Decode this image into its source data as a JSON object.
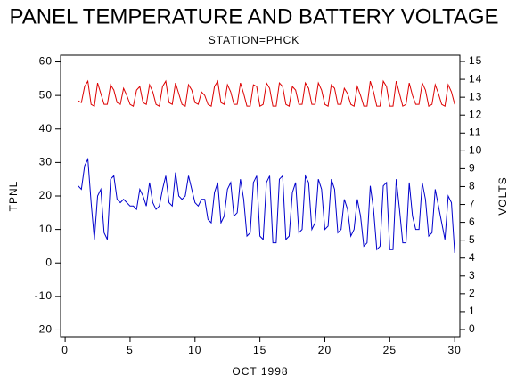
{
  "chart_data": {
    "type": "line",
    "title": "PANEL TEMPERATURE AND BATTERY VOLTAGE",
    "subtitle": "STATION=PHCK",
    "x_label": "OCT 1998",
    "y_label": "TPNL",
    "y2_label": "VOLTS",
    "x": [
      1,
      1.25,
      1.5,
      1.75,
      2,
      2.25,
      2.5,
      2.75,
      3,
      3.25,
      3.5,
      3.75,
      4,
      4.25,
      4.5,
      4.75,
      5,
      5.25,
      5.5,
      5.75,
      6,
      6.25,
      6.5,
      6.75,
      7,
      7.25,
      7.5,
      7.75,
      8,
      8.25,
      8.5,
      8.75,
      9,
      9.25,
      9.5,
      9.75,
      10,
      10.25,
      10.5,
      10.75,
      11,
      11.25,
      11.5,
      11.75,
      12,
      12.25,
      12.5,
      12.75,
      13,
      13.25,
      13.5,
      13.75,
      14,
      14.25,
      14.5,
      14.75,
      15,
      15.25,
      15.5,
      15.75,
      16,
      16.25,
      16.5,
      16.75,
      17,
      17.25,
      17.5,
      17.75,
      18,
      18.25,
      18.5,
      18.75,
      19,
      19.25,
      19.5,
      19.75,
      20,
      20.25,
      20.5,
      20.75,
      21,
      21.25,
      21.5,
      21.75,
      22,
      22.25,
      22.5,
      22.75,
      23,
      23.25,
      23.5,
      23.75,
      24,
      24.25,
      24.5,
      24.75,
      25,
      25.25,
      25.5,
      25.75,
      26,
      26.25,
      26.5,
      26.75,
      27,
      27.25,
      27.5,
      27.75,
      28,
      28.25,
      28.5,
      28.75,
      29,
      29.25,
      29.5,
      29.75,
      30
    ],
    "series": [
      {
        "color": "#0000cc",
        "axis": "y",
        "values": [
          23,
          22,
          29,
          31,
          18,
          7,
          20,
          22,
          9,
          7,
          25,
          26,
          19,
          18,
          19,
          18,
          17,
          17,
          16,
          22,
          20,
          17,
          24,
          18,
          16,
          17,
          22,
          26,
          18,
          17,
          27,
          20,
          19,
          20,
          26,
          22,
          18,
          17,
          19,
          19,
          13,
          12,
          21,
          24,
          12,
          14,
          22,
          24,
          14,
          15,
          25,
          19,
          8,
          9,
          24,
          26,
          8,
          7,
          24,
          26,
          6,
          6,
          25,
          26,
          7,
          8,
          21,
          24,
          9,
          10,
          26,
          24,
          10,
          12,
          25,
          22,
          10,
          11,
          25,
          22,
          9,
          10,
          19,
          16,
          8,
          10,
          19,
          14,
          5,
          6,
          23,
          16,
          4,
          5,
          23,
          24,
          4,
          4,
          25,
          16,
          6,
          6,
          24,
          14,
          10,
          10,
          24,
          19,
          8,
          9,
          22,
          17,
          12,
          7,
          20,
          18,
          3
        ]
      },
      {
        "color": "#dd0000",
        "axis": "y2",
        "values": [
          12.8,
          12.7,
          13.6,
          13.9,
          12.6,
          12.5,
          13.8,
          13.2,
          12.6,
          12.6,
          13.7,
          13.4,
          12.7,
          12.6,
          13.5,
          13.1,
          12.6,
          12.5,
          13.4,
          13.6,
          12.7,
          12.6,
          13.7,
          13.3,
          12.6,
          12.5,
          13.6,
          13.9,
          12.7,
          12.6,
          13.8,
          13.2,
          12.6,
          12.5,
          13.7,
          13.4,
          12.7,
          12.6,
          13.3,
          13.1,
          12.6,
          12.5,
          13.6,
          13.9,
          12.7,
          12.6,
          13.7,
          13.3,
          12.6,
          12.6,
          13.8,
          13.2,
          12.5,
          12.5,
          13.7,
          13.6,
          12.5,
          12.6,
          13.8,
          13.5,
          12.5,
          12.5,
          13.8,
          13.6,
          12.6,
          12.5,
          13.6,
          13.4,
          12.6,
          12.6,
          13.8,
          13.5,
          12.6,
          12.6,
          13.8,
          13.4,
          12.6,
          12.5,
          13.7,
          13.5,
          12.6,
          12.6,
          13.5,
          13.2,
          12.6,
          12.5,
          13.6,
          13.1,
          12.5,
          12.5,
          13.9,
          13.3,
          12.5,
          12.5,
          13.9,
          13.6,
          12.5,
          12.5,
          13.9,
          13.2,
          12.5,
          12.6,
          13.8,
          13.1,
          12.6,
          12.6,
          13.8,
          13.4,
          12.5,
          12.6,
          13.7,
          13.2,
          12.6,
          12.5,
          13.7,
          13.3,
          12.6
        ]
      }
    ],
    "xlim": [
      -0.35,
      30.4
    ],
    "xticks": [
      0,
      5,
      10,
      15,
      20,
      25,
      30
    ],
    "ylim": [
      -22,
      62
    ],
    "yticks": [
      -20,
      -10,
      0,
      10,
      20,
      30,
      40,
      50,
      60
    ],
    "y2lim": [
      -0.4,
      15.35
    ],
    "y2ticks": [
      0,
      1,
      2,
      3,
      4,
      5,
      6,
      7,
      8,
      9,
      10,
      11,
      12,
      13,
      14,
      15
    ]
  }
}
